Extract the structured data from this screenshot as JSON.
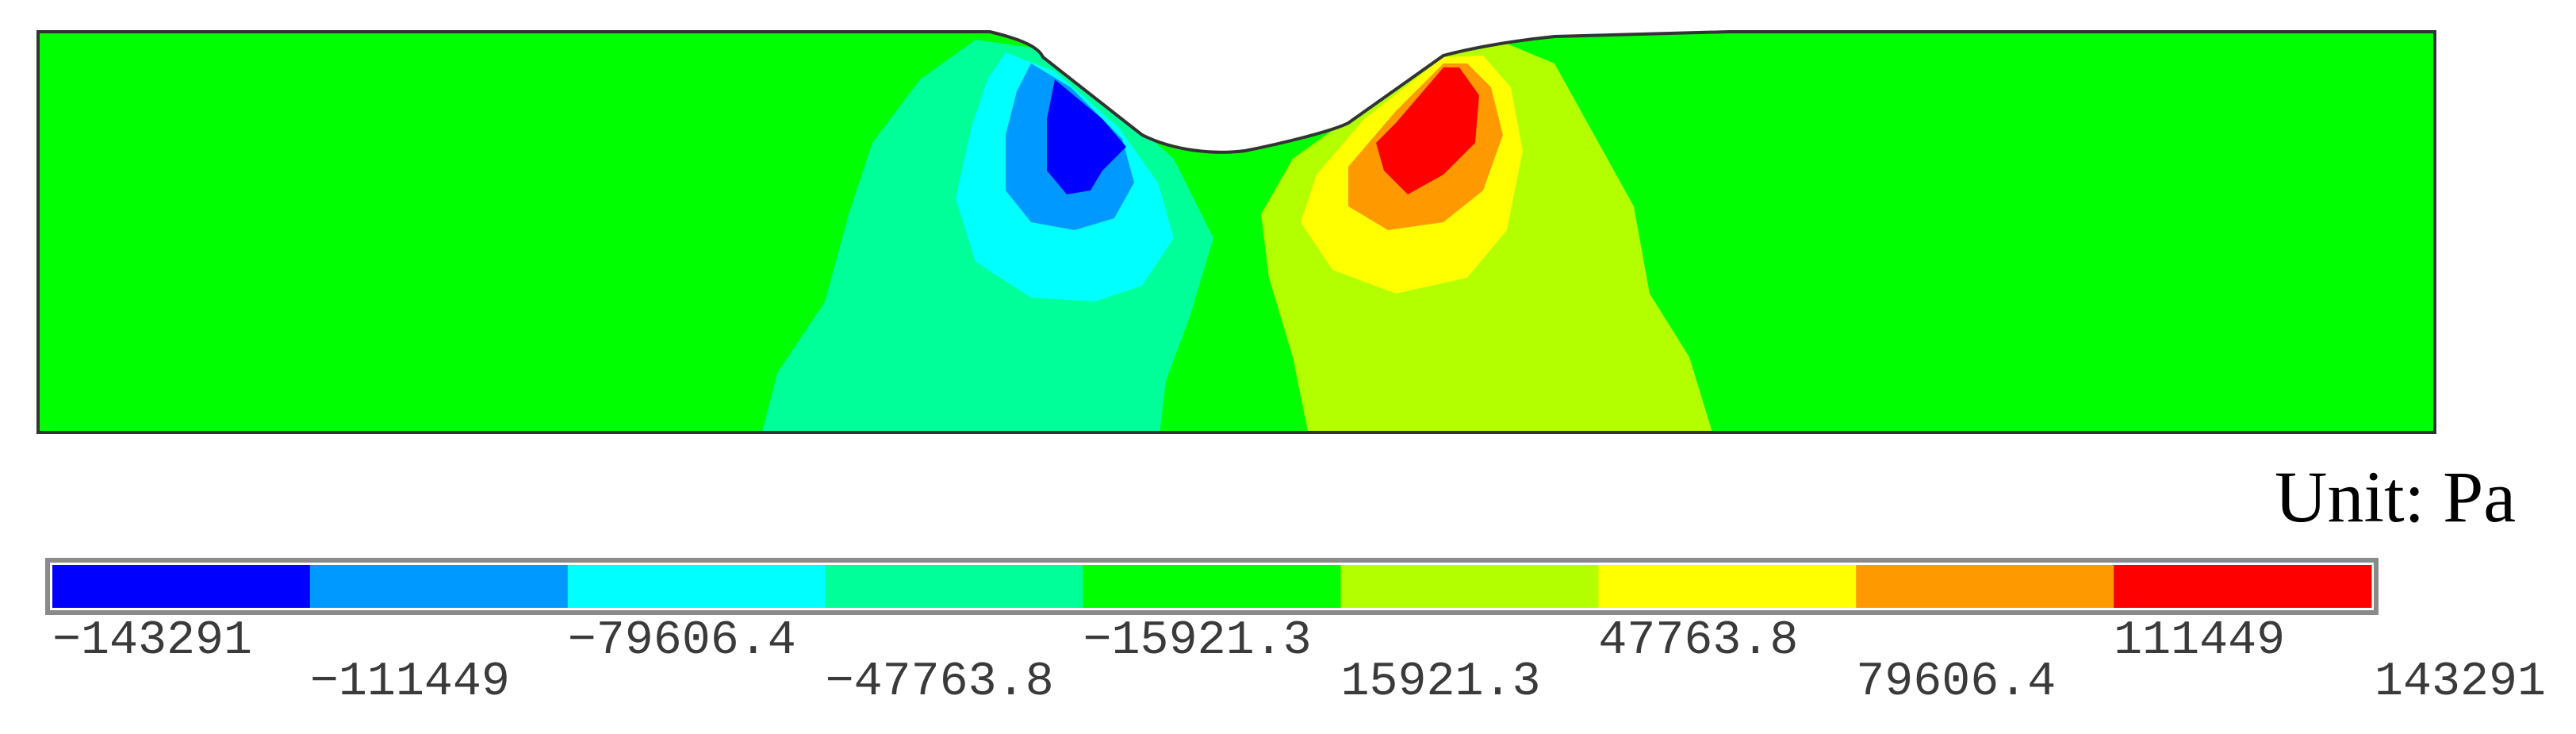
{
  "legend": {
    "unit": "Unit: Pa",
    "bands": [
      {
        "color": "#0000ff",
        "min": -143291,
        "max": -111449
      },
      {
        "color": "#0099ff",
        "min": -111449,
        "max": -79606.4
      },
      {
        "color": "#00ffff",
        "min": -79606.4,
        "max": -47763.8
      },
      {
        "color": "#00ff99",
        "min": -47763.8,
        "max": -15921.3
      },
      {
        "color": "#00ff00",
        "min": -15921.3,
        "max": 15921.3
      },
      {
        "color": "#b3ff00",
        "min": 15921.3,
        "max": 47763.8
      },
      {
        "color": "#ffff00",
        "min": 47763.8,
        "max": 79606.4
      },
      {
        "color": "#ff9900",
        "min": 79606.4,
        "max": 111449
      },
      {
        "color": "#ff0000",
        "min": 111449,
        "max": 143291
      }
    ],
    "tick_labels": [
      "-143291",
      "-111449",
      "-79606.4",
      "-47763.8",
      "-15921.3",
      "15921.3",
      "47763.8",
      "79606.4",
      "111449",
      "143291"
    ]
  },
  "plot": {
    "background_color": "#00ff00",
    "outline_color": "#333333"
  }
}
